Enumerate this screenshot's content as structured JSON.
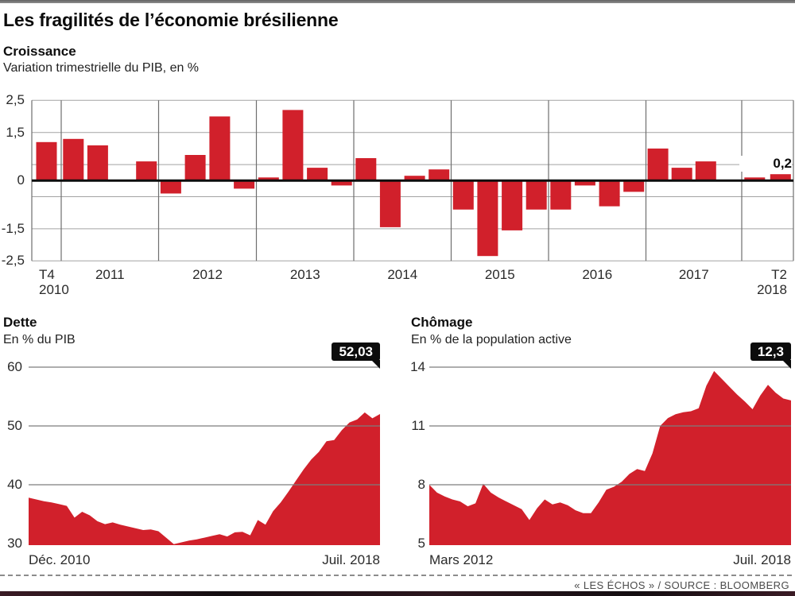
{
  "accent": {
    "red": "#d1202b",
    "grid_light": "#a3a3a3",
    "grid_dark": "#6f6f6f",
    "axis_black": "#0d0d0d",
    "badge_bg": "#0c0c0c",
    "badge_text": "#ffffff"
  },
  "header": {
    "title": "Les fragilités de l’économie brésilienne"
  },
  "footer": {
    "credit": "« LES ÉCHOS » / SOURCE : BLOOMBERG"
  },
  "chart_data": [
    {
      "id": "croissance",
      "type": "bar",
      "title": "Croissance",
      "subtitle": "Variation trimestrielle du PIB, en %",
      "ylim": [
        -2.5,
        2.5
      ],
      "yticks": [
        {
          "label": "2,5",
          "value": 2.5
        },
        {
          "label": "1,5",
          "value": 1.5
        },
        {
          "label": "0",
          "value": 0
        },
        {
          "label": "-1,5",
          "value": -1.5
        },
        {
          "label": "-2,5",
          "value": -2.5
        }
      ],
      "gridlines": [
        2.5,
        1.5,
        0.5,
        -0.5,
        -1.5,
        -2.5
      ],
      "x_first_label": [
        "T4",
        "2010"
      ],
      "x_year_labels": [
        "2011",
        "2012",
        "2013",
        "2014",
        "2015",
        "2016",
        "2017"
      ],
      "x_last_label": [
        "T2",
        "2018"
      ],
      "last_value_label": "0,2",
      "region_counts": [
        1,
        4,
        4,
        4,
        4,
        4,
        4,
        4,
        2
      ],
      "values": [
        1.2,
        1.3,
        1.1,
        0,
        0.6,
        -0.4,
        0.8,
        2.0,
        -0.25,
        0.1,
        2.2,
        0.4,
        -0.15,
        0.7,
        -1.45,
        0.15,
        0.35,
        -0.9,
        -2.35,
        -1.55,
        -0.9,
        -0.9,
        -0.15,
        -0.8,
        -0.35,
        1.0,
        0.4,
        0.6,
        0,
        0.1,
        0.2
      ]
    },
    {
      "id": "dette",
      "type": "area",
      "title": "Dette",
      "subtitle": "En % du PIB",
      "badge": "52,03",
      "ylim": [
        29.7,
        60
      ],
      "yticks": [
        {
          "label": "60",
          "value": 60
        },
        {
          "label": "50",
          "value": 50
        },
        {
          "label": "40",
          "value": 40
        },
        {
          "label": "30",
          "value": 30
        }
      ],
      "gridlines": [
        60,
        50,
        40
      ],
      "x_start_label": "Déc. 2010",
      "x_end_label": "Juil. 2018",
      "values": [
        37.8,
        37.5,
        37.2,
        37.0,
        36.7,
        36.4,
        34.4,
        35.4,
        34.8,
        33.8,
        33.3,
        33.6,
        33.2,
        32.9,
        32.6,
        32.3,
        32.4,
        32.1,
        31.0,
        29.9,
        30.2,
        30.5,
        30.7,
        31.0,
        31.3,
        31.6,
        31.2,
        31.9,
        32.0,
        31.4,
        34.0,
        33.2,
        35.5,
        37.0,
        38.8,
        40.7,
        42.6,
        44.3,
        45.6,
        47.4,
        47.6,
        49.3,
        50.6,
        51.1,
        52.3,
        51.3,
        52.03
      ]
    },
    {
      "id": "chomage",
      "type": "area",
      "title": "Chômage",
      "subtitle": "En % de la population active",
      "badge": "12,3",
      "ylim": [
        4.9,
        14
      ],
      "yticks": [
        {
          "label": "14",
          "value": 14
        },
        {
          "label": "11",
          "value": 11
        },
        {
          "label": "8",
          "value": 8
        },
        {
          "label": "5",
          "value": 5
        }
      ],
      "gridlines": [
        14,
        11,
        8
      ],
      "x_start_label": "Mars 2012",
      "x_end_label": "Juil. 2018",
      "values": [
        8.0,
        7.6,
        7.4,
        7.25,
        7.15,
        6.9,
        7.05,
        8.05,
        7.6,
        7.35,
        7.15,
        6.95,
        6.75,
        6.2,
        6.8,
        7.25,
        7.0,
        7.1,
        6.95,
        6.7,
        6.55,
        6.55,
        7.1,
        7.75,
        7.9,
        8.15,
        8.55,
        8.8,
        8.7,
        9.6,
        11.0,
        11.4,
        11.6,
        11.7,
        11.75,
        11.9,
        13.05,
        13.8,
        13.4,
        13.0,
        12.6,
        12.25,
        11.85,
        12.55,
        13.1,
        12.7,
        12.4,
        12.3
      ]
    }
  ]
}
